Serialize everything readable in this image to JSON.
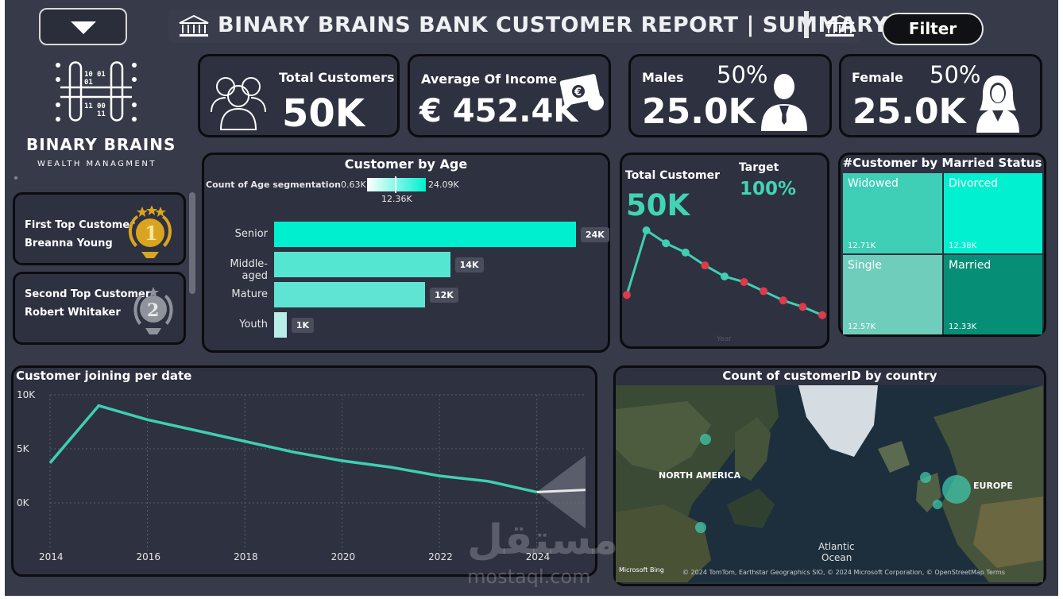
{
  "header": {
    "title": "BINARY BRAINS BANK CUSTOMER REPORT | SUMMARY",
    "filter_label": "Filter"
  },
  "brand": {
    "name": "BINARY BRAINS",
    "tagline": "WEALTH MANAGMENT"
  },
  "kpis": {
    "total_customers": {
      "label": "Total Customers",
      "value": "50K"
    },
    "average_income": {
      "label": "Average Of Income",
      "value": "€ 452.4K"
    },
    "males": {
      "label": "Males",
      "pct": "50%",
      "value": "25.0K"
    },
    "female": {
      "label": "Female",
      "pct": "50%",
      "value": "25.0K"
    }
  },
  "top_customers": [
    {
      "title": "First Top Customer",
      "name": "Breanna Young",
      "rank": "1"
    },
    {
      "title": "Second Top Customer",
      "name": "Robert Whitaker",
      "rank": "2"
    }
  ],
  "age_chart": {
    "title": "Customer by Age",
    "legend_label": "Count of Age segmentation",
    "legend_min": "0.63K",
    "legend_mid": "12.36K",
    "legend_max": "24.09K",
    "categories": [
      "Senior",
      "Middle-aged",
      "Mature",
      "Youth"
    ],
    "values": [
      24,
      14,
      12,
      1
    ],
    "value_labels": [
      "24K",
      "14K",
      "12K",
      "1K"
    ],
    "colors": [
      "#00f0cf",
      "#55e6d2",
      "#5fe3d2",
      "#b9ede8"
    ]
  },
  "total_customer_card": {
    "label": "Total Customer",
    "value": "50K",
    "target_label": "Target",
    "target_value": "100%",
    "axis_label": "Year",
    "trend": [
      0.3,
      1.0,
      0.86,
      0.76,
      0.62,
      0.5,
      0.44,
      0.34,
      0.24,
      0.17,
      0.08
    ]
  },
  "married_status": {
    "title": "#Customer by Married Status",
    "items": [
      {
        "name": "Widowed",
        "value": "12.71K",
        "color": "#3fcfb6"
      },
      {
        "name": "Divorced",
        "value": "12.38K",
        "color": "#00f0d0"
      },
      {
        "name": "Single",
        "value": "12.57K",
        "color": "#6fcdbc"
      },
      {
        "name": "Married",
        "value": "12.33K",
        "color": "#068f76"
      }
    ]
  },
  "joining_chart": {
    "title": "Customer joining per date",
    "y_ticks": [
      "10K",
      "5K",
      "0K"
    ],
    "x_ticks": [
      "2014",
      "2016",
      "2018",
      "2020",
      "2022",
      "2024"
    ],
    "x": [
      2014,
      2015,
      2016,
      2017,
      2018,
      2019,
      2020,
      2021,
      2022,
      2023,
      2024,
      2025
    ],
    "y": [
      3.7,
      9.0,
      7.7,
      6.7,
      5.7,
      4.7,
      3.9,
      3.3,
      2.5,
      2.0,
      1.0,
      1.2
    ],
    "ylim": [
      0,
      10
    ],
    "line_color": "#3fcfb3"
  },
  "country_map": {
    "title": "Count of customerID by country",
    "labels": [
      "NORTH AMERICA",
      "EUROPE",
      "Atlantic",
      "Ocean"
    ],
    "attribution": "Microsoft Bing",
    "copyright": "© 2024 TomTom, Earthstar Geographics SIO, © 2024 Microsoft Corporation, © OpenStreetMap  Terms"
  },
  "watermark": {
    "arabic": "مستقل",
    "latin": "mostaql.com"
  }
}
